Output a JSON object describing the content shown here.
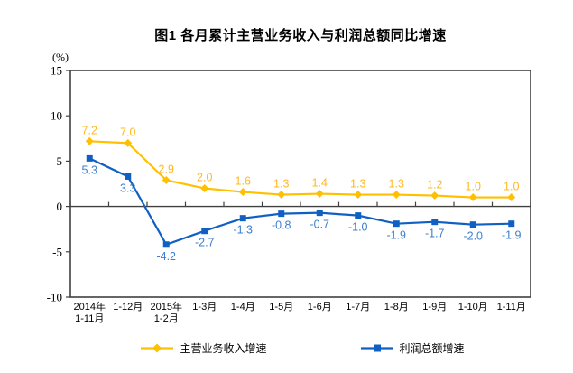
{
  "chart_data": {
    "type": "line",
    "title": "图1  各月累计主营业务收入与利润总额同比增速",
    "y_unit_label": "(%)",
    "y_axis": {
      "min": -10,
      "max": 15,
      "ticks": [
        15,
        10,
        5,
        0,
        -5,
        -10
      ]
    },
    "axis_color": "#404040",
    "grid": false,
    "legend_position": "bottom",
    "categories": [
      "2014年\n1-11月",
      "1-12月",
      "2015年\n1-2月",
      "1-3月",
      "1-4月",
      "1-5月",
      "1-6月",
      "1-7月",
      "1-8月",
      "1-9月",
      "1-10月",
      "1-11月"
    ],
    "series": [
      {
        "name": "主营业务收入增速",
        "marker": "diamond",
        "color": "#FFC000",
        "label_color": "#FFB91E",
        "label_position": "above",
        "values": [
          7.2,
          7.0,
          2.9,
          2.0,
          1.6,
          1.3,
          1.4,
          1.3,
          1.3,
          1.2,
          1.0,
          1.0
        ]
      },
      {
        "name": "利润总额增速",
        "marker": "square",
        "color": "#1060C4",
        "label_color": "#3E7ECC",
        "label_position": "below",
        "values": [
          5.3,
          3.3,
          -4.2,
          -2.7,
          -1.3,
          -0.8,
          -0.7,
          -1.0,
          -1.9,
          -1.7,
          -2.0,
          -1.9
        ]
      }
    ]
  }
}
